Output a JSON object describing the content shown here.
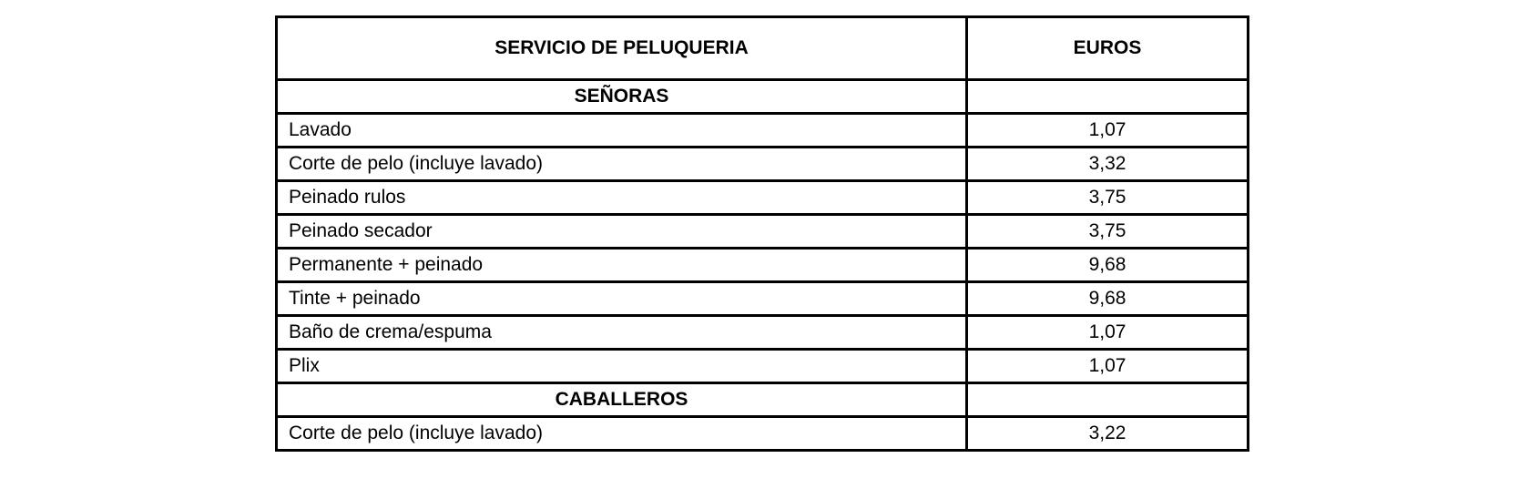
{
  "table": {
    "headers": [
      "SERVICIO DE PELUQUERIA",
      "EUROS"
    ],
    "sections": [
      {
        "title": "SEÑORAS",
        "rows": [
          [
            "Lavado",
            "1,07"
          ],
          [
            "Corte de pelo (incluye lavado)",
            "3,32"
          ],
          [
            "Peinado rulos",
            "3,75"
          ],
          [
            "Peinado secador",
            "3,75"
          ],
          [
            "Permanente + peinado",
            "9,68"
          ],
          [
            "Tinte + peinado",
            "9,68"
          ],
          [
            "Baño de crema/espuma",
            "1,07"
          ],
          [
            "Plix",
            "1,07"
          ]
        ]
      },
      {
        "title": "CABALLEROS",
        "rows": [
          [
            "Corte de pelo (incluye lavado)",
            "3,22"
          ]
        ]
      }
    ]
  }
}
